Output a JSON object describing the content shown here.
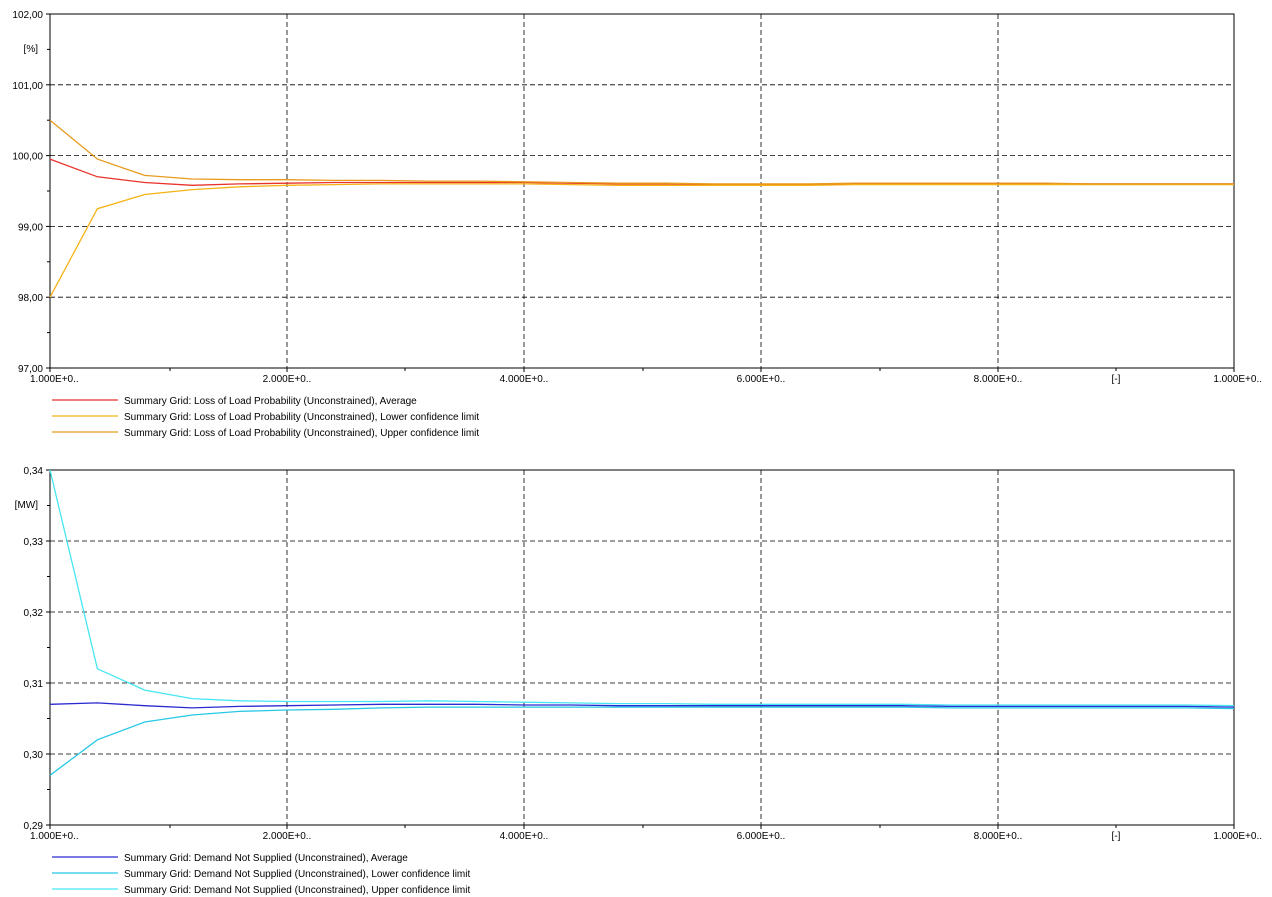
{
  "chart_data": [
    {
      "type": "line",
      "unit_label": "[%]",
      "x_unit_label": "[-]",
      "ylim": [
        97.0,
        102.0
      ],
      "yticks": [
        "97,00",
        "98,00",
        "99,00",
        "100,00",
        "101,00",
        "102,00"
      ],
      "xtick_labels": [
        "1.000E+0..",
        "2.000E+0..",
        "4.000E+0..",
        "6.000E+0..",
        "8.000E+0..",
        "1.000E+0.."
      ],
      "grid": true,
      "legend_position": "bottom",
      "series": [
        {
          "name": "Summary Grid: Loss of Load Probability (Unconstrained), Average",
          "color": "#e8322a",
          "values": [
            99.95,
            99.7,
            99.62,
            99.58,
            99.6,
            99.61,
            99.62,
            99.62,
            99.62,
            99.62,
            99.62,
            99.61,
            99.6,
            99.6,
            99.59,
            99.59,
            99.59,
            99.6,
            99.6,
            99.6,
            99.6,
            99.6,
            99.6,
            99.6,
            99.6,
            99.6
          ]
        },
        {
          "name": "Summary Grid: Loss of Load Probability (Unconstrained), Lower confidence limit",
          "color": "#f5b316",
          "values": [
            98.0,
            99.25,
            99.45,
            99.52,
            99.56,
            99.58,
            99.59,
            99.6,
            99.6,
            99.6,
            99.6,
            99.59,
            99.58,
            99.58,
            99.58,
            99.58,
            99.58,
            99.59,
            99.59,
            99.59,
            99.59,
            99.59,
            99.59,
            99.59,
            99.59,
            99.59
          ]
        },
        {
          "name": "Summary Grid: Loss of Load Probability (Unconstrained), Upper confidence limit",
          "color": "#e89a1e",
          "values": [
            100.5,
            99.95,
            99.72,
            99.67,
            99.66,
            99.66,
            99.65,
            99.65,
            99.64,
            99.64,
            99.63,
            99.62,
            99.61,
            99.61,
            99.6,
            99.6,
            99.6,
            99.61,
            99.61,
            99.61,
            99.61,
            99.61,
            99.6,
            99.6,
            99.6,
            99.6
          ]
        }
      ]
    },
    {
      "type": "line",
      "unit_label": "[MW]",
      "x_unit_label": "[-]",
      "ylim": [
        0.29,
        0.34
      ],
      "yticks": [
        "0,29",
        "0,30",
        "0,31",
        "0,32",
        "0,33",
        "0,34"
      ],
      "xtick_labels": [
        "1.000E+0..",
        "2.000E+0..",
        "4.000E+0..",
        "6.000E+0..",
        "8.000E+0..",
        "1.000E+0.."
      ],
      "grid": true,
      "legend_position": "bottom",
      "series": [
        {
          "name": "Summary Grid: Demand Not Supplied (Unconstrained), Average",
          "color": "#2a2ad0",
          "values": [
            0.307,
            0.3072,
            0.3068,
            0.3065,
            0.3067,
            0.3068,
            0.3069,
            0.307,
            0.307,
            0.307,
            0.3069,
            0.3069,
            0.3068,
            0.3068,
            0.3068,
            0.3068,
            0.3068,
            0.3068,
            0.3068,
            0.3067,
            0.3067,
            0.3067,
            0.3067,
            0.3067,
            0.3067,
            0.3066
          ]
        },
        {
          "name": "Summary Grid: Demand Not Supplied (Unconstrained), Lower confidence limit",
          "color": "#27c8e6",
          "values": [
            0.297,
            0.302,
            0.3045,
            0.3055,
            0.306,
            0.3062,
            0.3063,
            0.3065,
            0.3066,
            0.3066,
            0.3066,
            0.3066,
            0.3066,
            0.3066,
            0.3066,
            0.3066,
            0.3066,
            0.3066,
            0.3066,
            0.3065,
            0.3065,
            0.3065,
            0.3065,
            0.3065,
            0.3065,
            0.3064
          ]
        },
        {
          "name": "Summary Grid: Demand Not Supplied (Unconstrained), Upper confidence limit",
          "color": "#46e6f2",
          "values": [
            0.34,
            0.312,
            0.309,
            0.3078,
            0.3075,
            0.3074,
            0.3074,
            0.3074,
            0.3075,
            0.3074,
            0.3073,
            0.3072,
            0.3071,
            0.3071,
            0.307,
            0.307,
            0.307,
            0.307,
            0.307,
            0.3069,
            0.3069,
            0.3069,
            0.3069,
            0.3069,
            0.3069,
            0.3068
          ]
        }
      ]
    }
  ]
}
